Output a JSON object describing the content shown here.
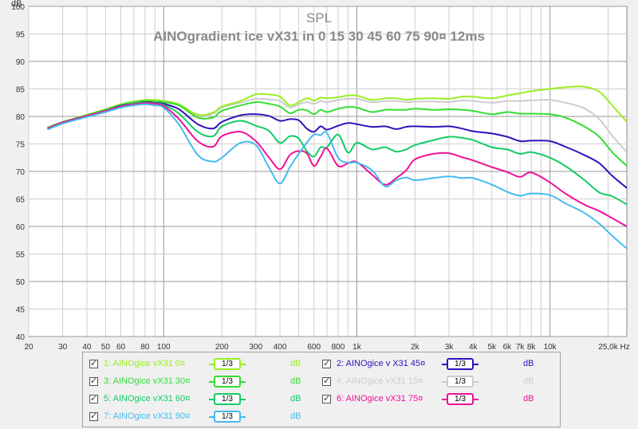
{
  "chart_data": {
    "type": "line",
    "title": "SPL",
    "subtitle": "AINOgradient ice vX31 in 0 15 30 45 60 75 90¤ 12ms",
    "ylabel": "dB",
    "xlabel": "",
    "x_scale": "log",
    "xlim": [
      20,
      25000
    ],
    "ylim": [
      40,
      100
    ],
    "grid": true,
    "yticks": [
      40,
      45,
      50,
      55,
      60,
      65,
      70,
      75,
      80,
      85,
      90,
      95,
      100
    ],
    "ytick_labels": [
      "40",
      "45",
      "50",
      "55",
      "60",
      "65",
      "70",
      "75",
      "80",
      "85",
      "90",
      "95",
      "100"
    ],
    "xticks": [
      20,
      30,
      40,
      50,
      60,
      80,
      100,
      200,
      300,
      400,
      600,
      800,
      1000,
      2000,
      3000,
      4000,
      5000,
      6000,
      7000,
      8000,
      10000,
      25000
    ],
    "xtick_labels": [
      "20",
      "30",
      "40",
      "50",
      "60",
      "80",
      "100",
      "200",
      "300",
      "400",
      "600",
      "800",
      "1k",
      "2k",
      "3k",
      "4k",
      "5k",
      "6k",
      "7k",
      "8k",
      "10k",
      "25,0k Hz"
    ],
    "x": [
      25,
      30,
      40,
      50,
      60,
      70,
      80,
      90,
      100,
      120,
      150,
      180,
      200,
      250,
      300,
      350,
      400,
      450,
      500,
      550,
      600,
      650,
      700,
      800,
      900,
      1000,
      1200,
      1400,
      1600,
      1800,
      2000,
      2500,
      3000,
      3500,
      4000,
      5000,
      6000,
      7000,
      8000,
      10000,
      12000,
      15000,
      18000,
      21000,
      25000
    ],
    "series": [
      {
        "name": "1: AINOgice vX31 0¤",
        "color": "#99ee22",
        "values": [
          78,
          79,
          80.3,
          81.3,
          82.2,
          82.7,
          83,
          83,
          82.8,
          82.2,
          80.3,
          80.7,
          81.8,
          82.8,
          84,
          84,
          83.6,
          82,
          82.6,
          83.3,
          82.9,
          83.4,
          83.3,
          83.5,
          83.8,
          83.8,
          83,
          83.3,
          83.3,
          83,
          83.2,
          83.3,
          83.2,
          83.6,
          83.6,
          83.3,
          83.8,
          84.2,
          84.6,
          85,
          85.3,
          85.4,
          84.5,
          82,
          79
        ]
      },
      {
        "name": "2: AINOgice v X31 45¤",
        "color": "#3311bb",
        "values": [
          77.8,
          78.9,
          80.1,
          81,
          81.9,
          82.3,
          82.6,
          82.5,
          82.3,
          81.3,
          78.6,
          77.8,
          79,
          80.2,
          80.4,
          80.1,
          79.2,
          79.5,
          79.3,
          77.8,
          77.2,
          78.2,
          77.6,
          78.3,
          78.8,
          78.6,
          78.1,
          78.2,
          77.7,
          78.1,
          78.2,
          78.1,
          78.2,
          77.8,
          77.3,
          76.9,
          76.3,
          75.5,
          75.6,
          75.5,
          74.5,
          73,
          71.5,
          69.2,
          67
        ]
      },
      {
        "name": "3: AINOgice vX31 30¤",
        "color": "#33dd33",
        "values": [
          77.9,
          79,
          80.2,
          81.2,
          82.1,
          82.6,
          82.8,
          82.7,
          82.6,
          82,
          79.8,
          79.8,
          81,
          82,
          82.6,
          82.3,
          81.8,
          80.6,
          81.2,
          81.1,
          80.4,
          81.2,
          80.8,
          81.4,
          81.7,
          81.6,
          80.8,
          81.2,
          81.2,
          81.2,
          81.4,
          81.2,
          81.3,
          81.2,
          81,
          80.4,
          80.8,
          80.5,
          80.5,
          80.4,
          79.8,
          78.2,
          76.3,
          73.5,
          71
        ]
      },
      {
        "name": "4: AINOgice vX31 15¤",
        "color": "#cccccc",
        "values": [
          78,
          79,
          80.3,
          81.3,
          82.2,
          82.7,
          82.9,
          82.9,
          82.7,
          82.1,
          80,
          80.5,
          81.6,
          82.5,
          83.2,
          83.1,
          82.8,
          81.6,
          82.2,
          82.6,
          82.3,
          82.8,
          82.6,
          83,
          83.2,
          83.2,
          82.6,
          82.8,
          82.8,
          82.6,
          82.7,
          82.7,
          82.6,
          82.9,
          82.8,
          82.5,
          82.8,
          82.8,
          82.9,
          83,
          82.5,
          81.5,
          79.5,
          76.5,
          73.5
        ]
      },
      {
        "name": "5: AINOgice vX31 60¤",
        "color": "#11cc66",
        "values": [
          77.8,
          78.9,
          80.1,
          81,
          81.8,
          82.3,
          82.5,
          82.4,
          82.1,
          80.5,
          77.2,
          76.4,
          78.2,
          79.2,
          78.3,
          77.4,
          75.2,
          76.4,
          76,
          73.7,
          72.7,
          74.4,
          74.4,
          76.7,
          73.4,
          75.2,
          74,
          74.4,
          73.6,
          74,
          74.8,
          75.7,
          76.3,
          76.1,
          75.7,
          74.4,
          74,
          73.2,
          73.5,
          72.5,
          71,
          68.5,
          66.2,
          65.5,
          64
        ]
      },
      {
        "name": "6: AINOgice vX31 75¤",
        "color": "#ee1199",
        "values": [
          77.8,
          78.9,
          80.1,
          81,
          81.8,
          82.2,
          82.4,
          82.3,
          81.9,
          79.5,
          75.5,
          74.5,
          76.4,
          77.2,
          75.5,
          72.6,
          70.4,
          73,
          73.7,
          73.3,
          71,
          72.7,
          74.2,
          71,
          71.5,
          71.7,
          69.4,
          67.6,
          68.8,
          70.2,
          72.2,
          73.2,
          73.3,
          72.6,
          72,
          70.8,
          69.9,
          69,
          69.8,
          68,
          66,
          64,
          62.8,
          61.5,
          60
        ]
      },
      {
        "name": "7: AINOgice vX31 90¤",
        "color": "#44bbee",
        "values": [
          77.6,
          78.7,
          79.9,
          80.8,
          81.6,
          82,
          82.2,
          82,
          81.6,
          78.5,
          73,
          71.8,
          72.5,
          75.2,
          74.8,
          70.8,
          67.8,
          70.8,
          73.2,
          75.2,
          76.7,
          76.6,
          77,
          72.5,
          71.6,
          71.6,
          70.2,
          67.3,
          68.4,
          68.9,
          68.4,
          68.8,
          69.1,
          68.8,
          68.8,
          67.6,
          66.3,
          65.6,
          66,
          65.7,
          64.2,
          62.5,
          60.5,
          58.3,
          56
        ]
      }
    ]
  },
  "legend": [
    {
      "id": "s1",
      "label": "1: AINOgice vX31 0¤",
      "smoothing": "1/3",
      "unit": "dB",
      "color": "#99ee22"
    },
    {
      "id": "s2",
      "label": "2: AINOgice v X31 45¤",
      "smoothing": "1/3",
      "unit": "dB",
      "color": "#3311bb"
    },
    {
      "id": "s3",
      "label": "3: AINOgice vX31 30¤",
      "smoothing": "1/3",
      "unit": "dB",
      "color": "#33dd33"
    },
    {
      "id": "s4",
      "label": "4: AINOgice vX31 15¤",
      "smoothing": "1/3",
      "unit": "dB",
      "color": "#cccccc"
    },
    {
      "id": "s5",
      "label": "5: AINOgice vX31 60¤",
      "smoothing": "1/3",
      "unit": "dB",
      "color": "#11cc66"
    },
    {
      "id": "s6",
      "label": "6: AINOgice vX31 75¤",
      "smoothing": "1/3",
      "unit": "dB",
      "color": "#ee1199"
    },
    {
      "id": "s7",
      "label": "7: AINOgice vX31 90¤",
      "smoothing": "1/3",
      "unit": "dB",
      "color": "#44bbee"
    }
  ]
}
